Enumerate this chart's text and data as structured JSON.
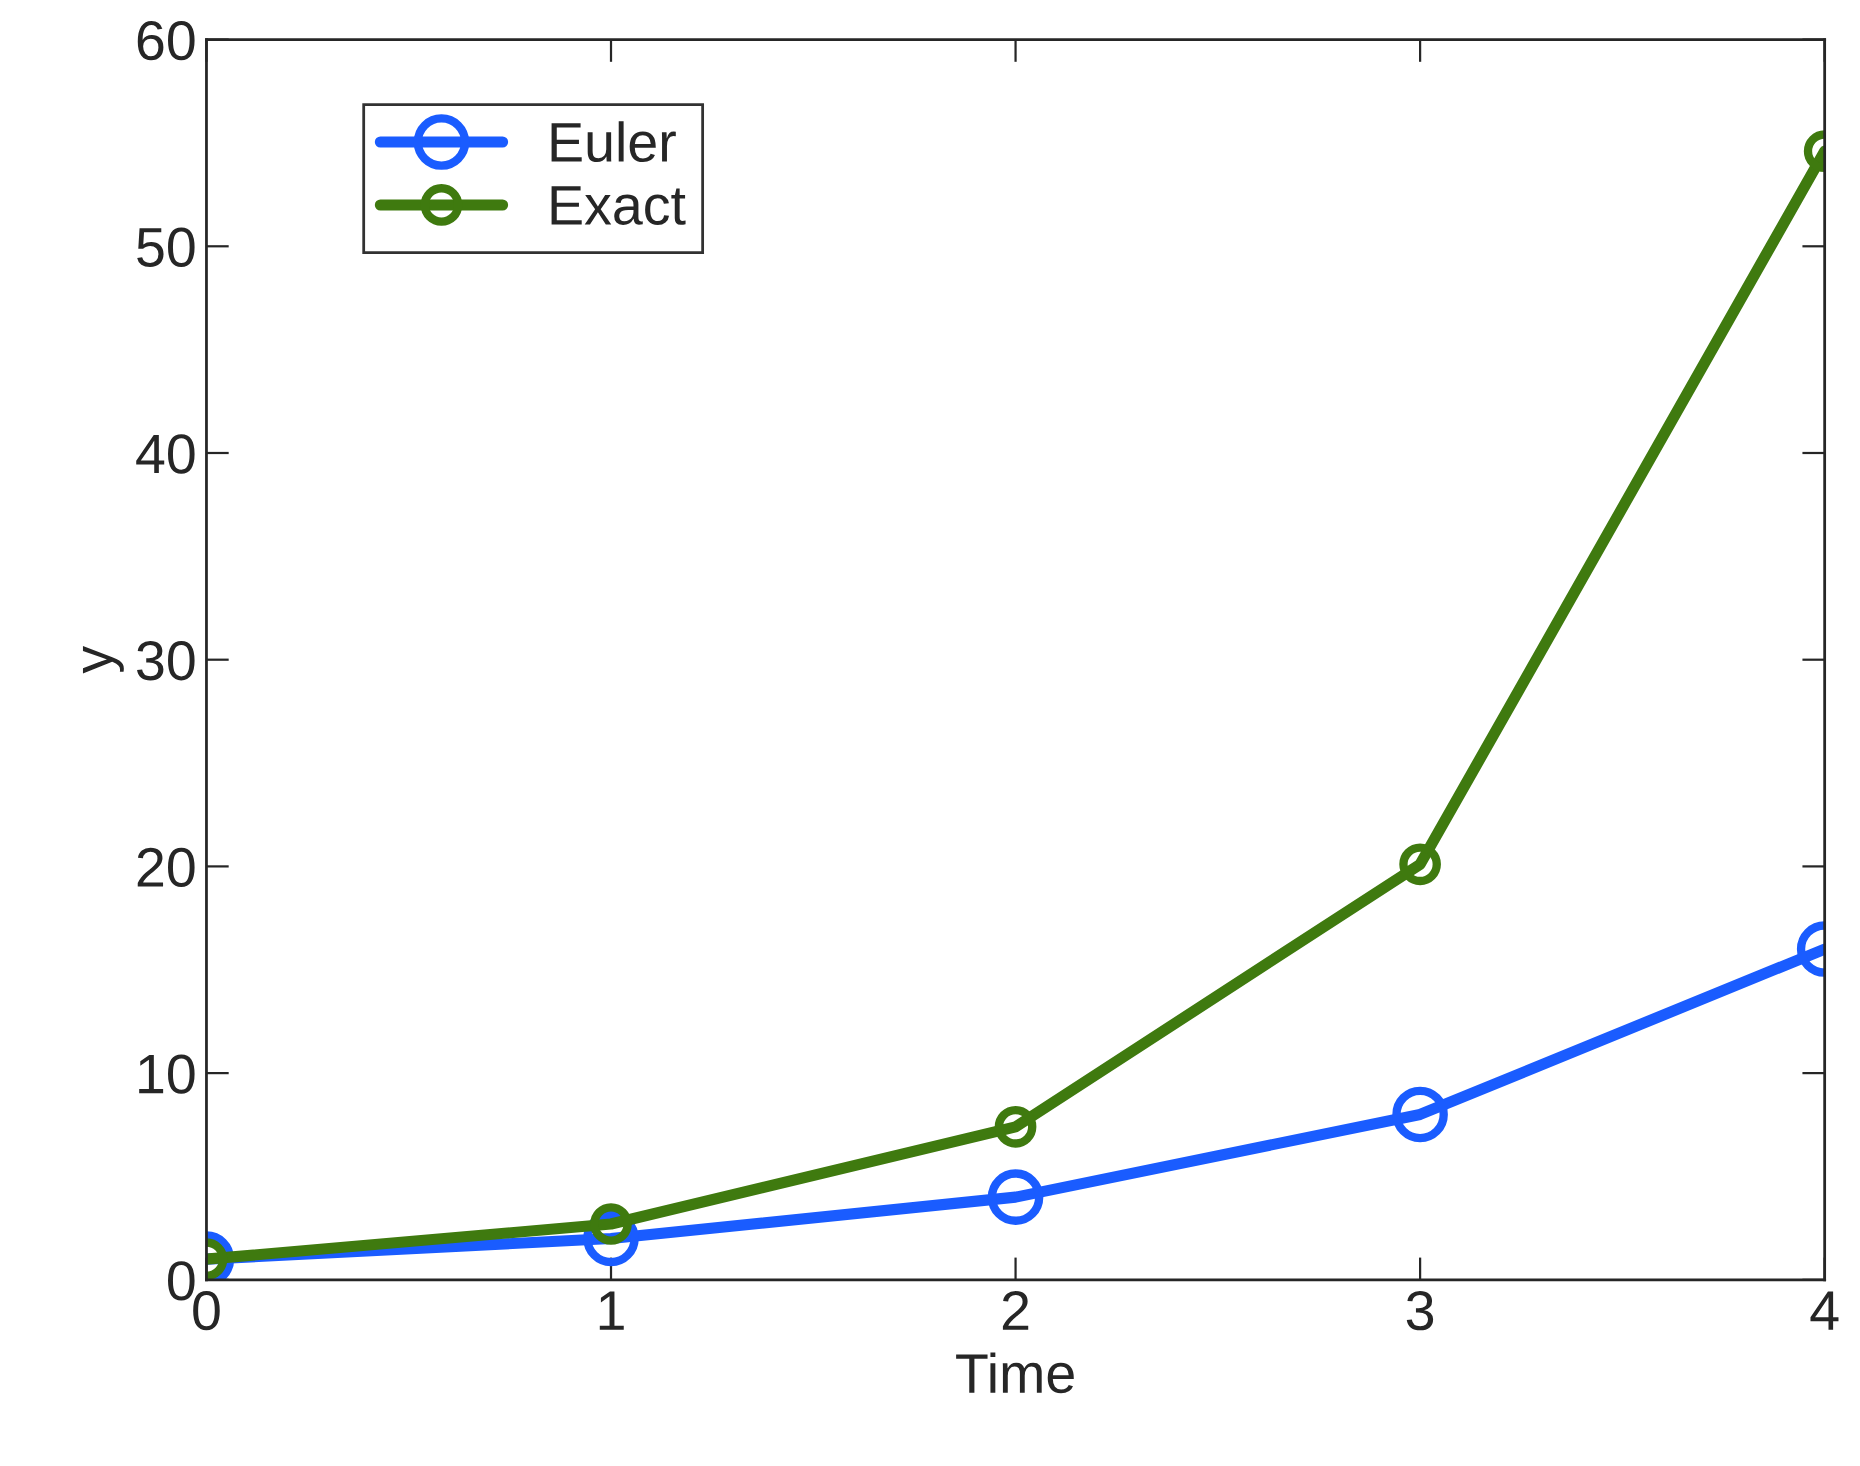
{
  "chart_data": {
    "type": "line",
    "xlabel": "Time",
    "ylabel": "y",
    "x": [
      0,
      1,
      2,
      3,
      4
    ],
    "series": [
      {
        "name": "Euler",
        "color": "#1a5cff",
        "values": [
          1,
          2,
          4,
          8,
          16
        ]
      },
      {
        "name": "Exact",
        "color": "#3f7a0f",
        "values": [
          1,
          2.7,
          7.4,
          20.1,
          54.6
        ]
      }
    ],
    "xlim": [
      0,
      4
    ],
    "xticks": [
      0,
      1,
      2,
      3,
      4
    ],
    "ylim": [
      0,
      60
    ],
    "yticks": [
      0,
      10,
      20,
      30,
      40,
      50,
      60
    ],
    "grid": false,
    "legend": "top left",
    "marker": "circle",
    "line_style": "solid"
  }
}
